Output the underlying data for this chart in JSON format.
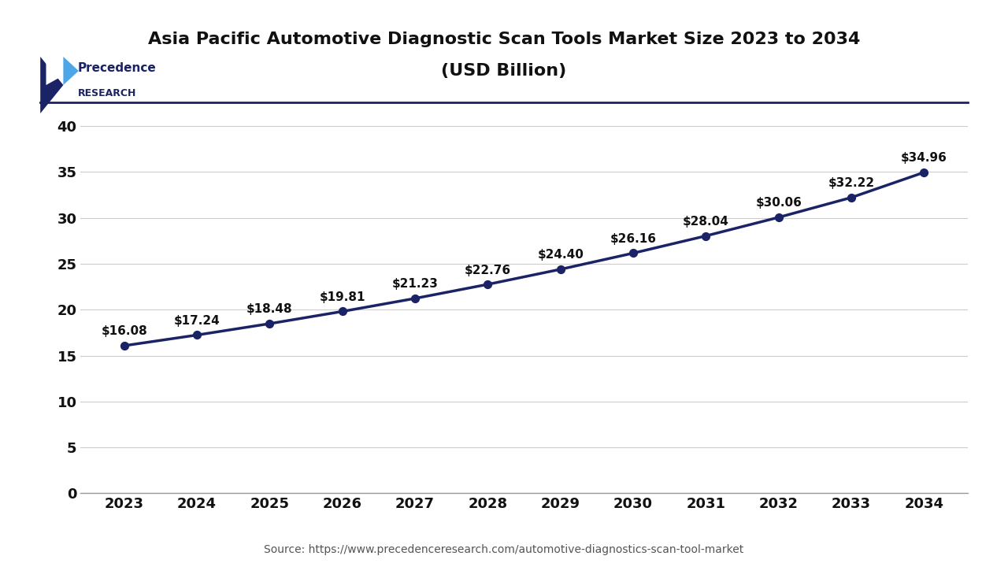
{
  "title_line1": "Asia Pacific Automotive Diagnostic Scan Tools Market Size 2023 to 2034",
  "title_line2": "(USD Billion)",
  "years": [
    2023,
    2024,
    2025,
    2026,
    2027,
    2028,
    2029,
    2030,
    2031,
    2032,
    2033,
    2034
  ],
  "values": [
    16.08,
    17.24,
    18.48,
    19.81,
    21.23,
    22.76,
    24.4,
    26.16,
    28.04,
    30.06,
    32.22,
    34.96
  ],
  "labels": [
    "$16.08",
    "$17.24",
    "$18.48",
    "$19.81",
    "$21.23",
    "$22.76",
    "$24.40",
    "$26.16",
    "$28.04",
    "$30.06",
    "$32.22",
    "$34.96"
  ],
  "line_color": "#1a2366",
  "marker_color": "#1a2366",
  "background_color": "#ffffff",
  "plot_bg_color": "#ffffff",
  "yticks": [
    0,
    5,
    10,
    15,
    20,
    25,
    30,
    35,
    40
  ],
  "ylim": [
    0,
    42
  ],
  "grid_color": "#cccccc",
  "source_text": "Source: https://www.precedenceresearch.com/automotive-diagnostics-scan-tool-market",
  "title_fontsize": 16,
  "label_fontsize": 11,
  "tick_fontsize": 13,
  "source_fontsize": 10,
  "logo_color_main": "#1a2366",
  "logo_color_accent": "#4da6e8"
}
